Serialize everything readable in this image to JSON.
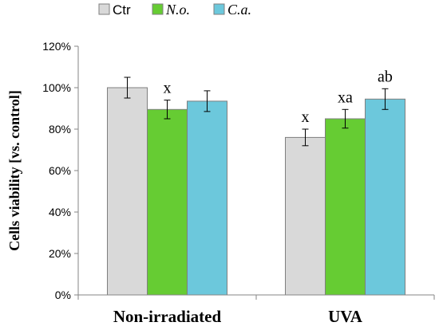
{
  "chart_data": {
    "type": "bar",
    "ylabel": "Cells viability  [vs. control]",
    "ylim": [
      0,
      120
    ],
    "yticks": [
      "0%",
      "20%",
      "40%",
      "60%",
      "80%",
      "100%",
      "120%"
    ],
    "categories": [
      "Non-irradiated",
      "UVA"
    ],
    "legend_position": "top-left",
    "grid": false,
    "series": [
      {
        "name": "Ctr",
        "italic": false,
        "color": "#d9d9d9",
        "values": [
          100,
          76
        ],
        "errors": [
          5,
          4
        ],
        "annotations": [
          "",
          "x"
        ]
      },
      {
        "name": "N.o.",
        "italic": true,
        "color": "#66cc33",
        "values": [
          89.5,
          85
        ],
        "errors": [
          4.5,
          4.5
        ],
        "annotations": [
          "x",
          "xa"
        ]
      },
      {
        "name": "C.a.",
        "italic": true,
        "color": "#6cc8dc",
        "values": [
          93.5,
          94.5
        ],
        "errors": [
          5,
          5
        ],
        "annotations": [
          "",
          "ab"
        ]
      }
    ]
  }
}
